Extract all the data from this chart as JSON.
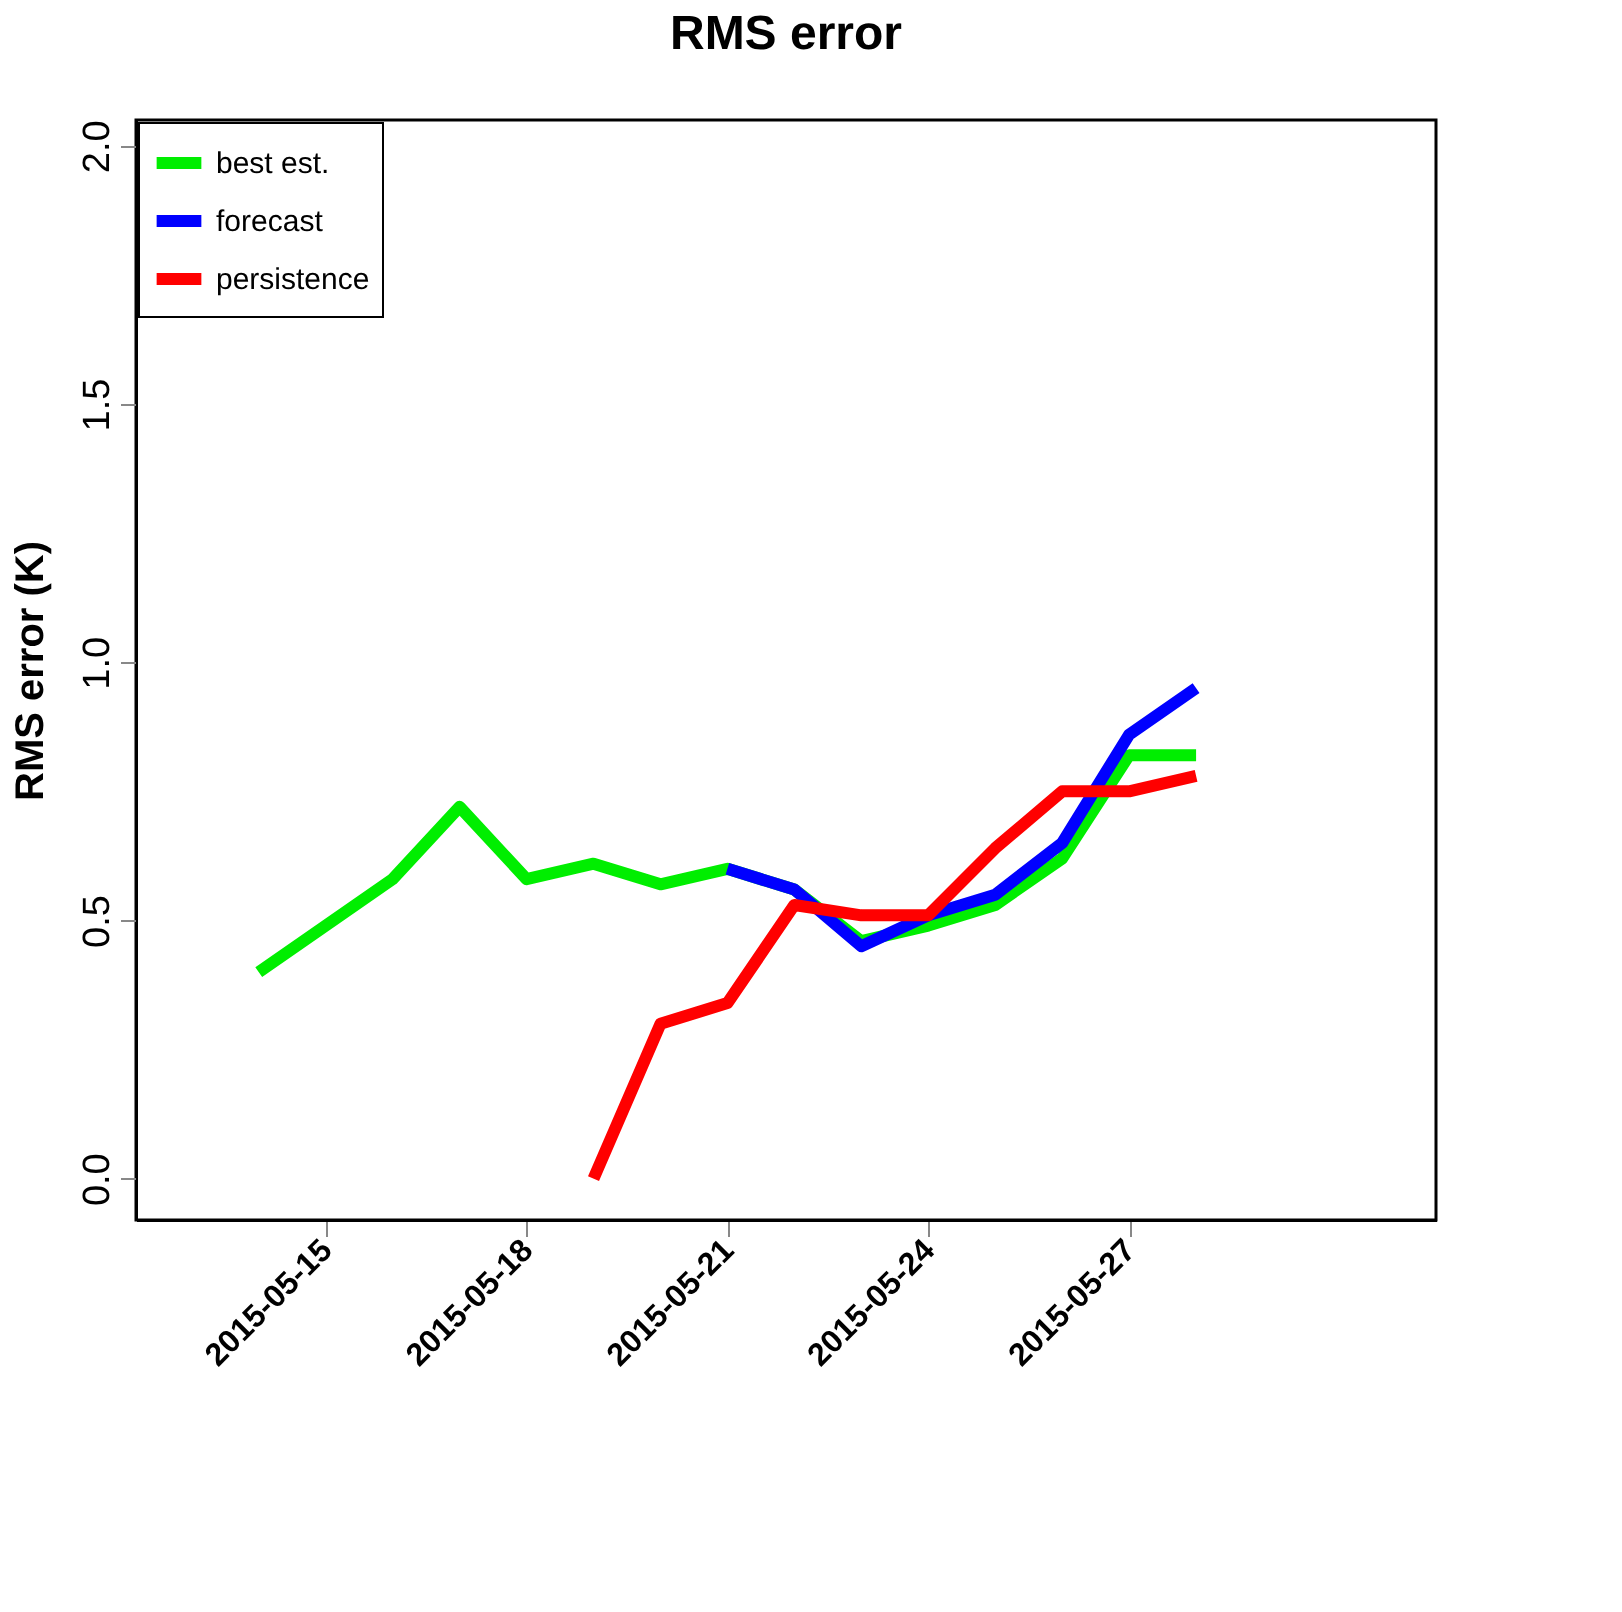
{
  "chart_data": {
    "type": "line",
    "title": "RMS error",
    "ylabel": "RMS error (K)",
    "xlim": [
      "2015-05-12T04:00",
      "2015-05-31T14:00"
    ],
    "xticks": [
      "2015-05-15",
      "2015-05-18",
      "2015-05-21",
      "2015-05-24",
      "2015-05-27"
    ],
    "ylim": [
      -0.08,
      2.05
    ],
    "yticks": [
      {
        "value": 0,
        "label": "0.0"
      },
      {
        "value": 0.5,
        "label": "0.5"
      },
      {
        "value": 1,
        "label": "1.0"
      },
      {
        "value": 1.5,
        "label": "1.5"
      },
      {
        "value": 2,
        "label": "2.0"
      }
    ],
    "grid": false,
    "legend": "top left",
    "line_style": "solid",
    "marker": "none",
    "series": [
      {
        "name": "best est.",
        "color": "#00ee00",
        "x": [
          "2015-05-14",
          "2015-05-15",
          "2015-05-16",
          "2015-05-17",
          "2015-05-18",
          "2015-05-19",
          "2015-05-20",
          "2015-05-21",
          "2015-05-22",
          "2015-05-23",
          "2015-05-24",
          "2015-05-25",
          "2015-05-26",
          "2015-05-27",
          "2015-05-28"
        ],
        "values": [
          0.4,
          0.49,
          0.58,
          0.72,
          0.58,
          0.61,
          0.57,
          0.6,
          0.56,
          0.46,
          0.49,
          0.53,
          0.62,
          0.82,
          0.82
        ]
      },
      {
        "name": "forecast",
        "color": "#0000ff",
        "x": [
          "2015-05-21",
          "2015-05-22",
          "2015-05-23",
          "2015-05-24",
          "2015-05-25",
          "2015-05-26",
          "2015-05-27",
          "2015-05-28"
        ],
        "values": [
          0.6,
          0.56,
          0.45,
          0.51,
          0.55,
          0.65,
          0.86,
          0.95
        ]
      },
      {
        "name": "persistence",
        "color": "#ff0000",
        "x": [
          "2015-05-19",
          "2015-05-20",
          "2015-05-21",
          "2015-05-22",
          "2015-05-23",
          "2015-05-24",
          "2015-05-25",
          "2015-05-26",
          "2015-05-27",
          "2015-05-28"
        ],
        "values": [
          0.0,
          0.3,
          0.34,
          0.53,
          0.51,
          0.51,
          0.64,
          0.75,
          0.75,
          0.78
        ]
      }
    ]
  }
}
